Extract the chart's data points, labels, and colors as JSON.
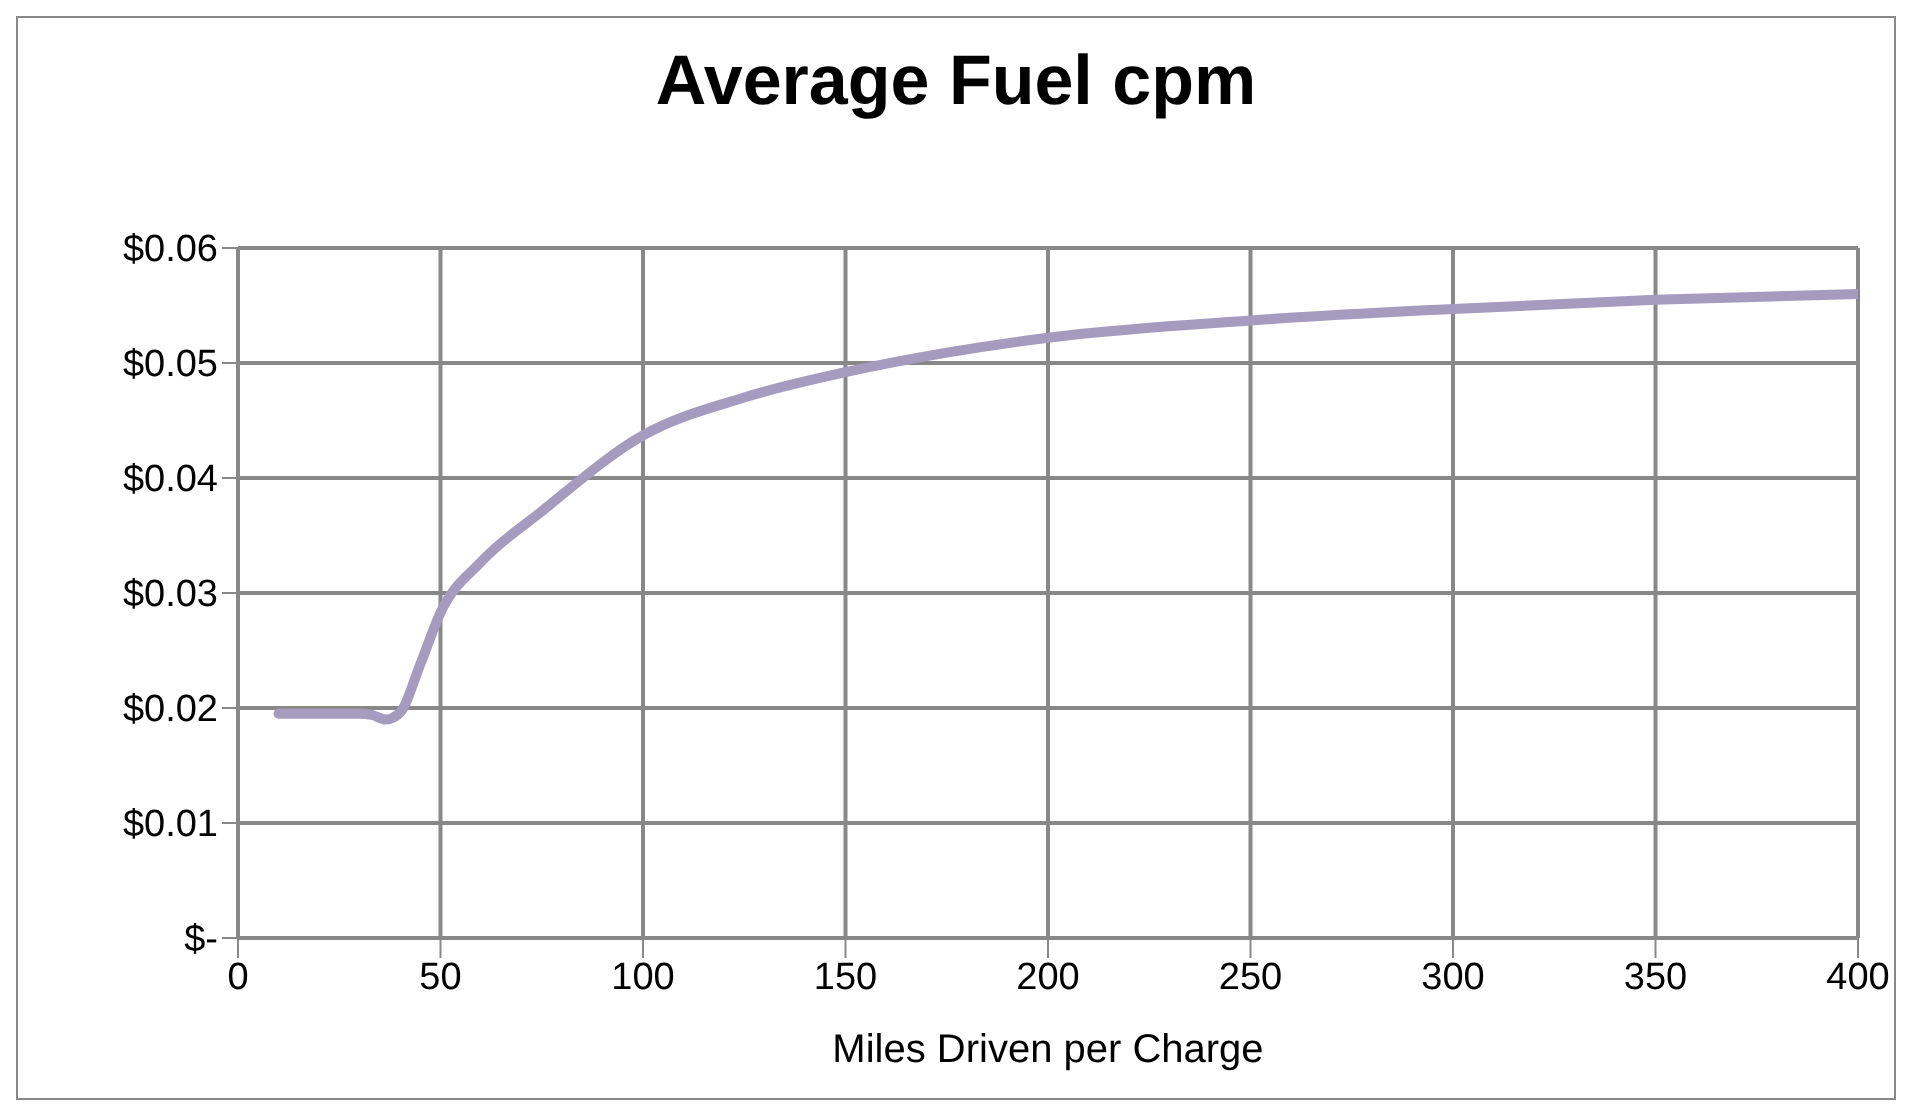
{
  "chart_data": {
    "type": "line",
    "title": "Average Fuel cpm",
    "xlabel": "Miles Driven per Charge",
    "x": [
      10,
      20,
      30,
      33,
      36.5,
      40,
      45,
      50,
      60,
      75,
      100,
      125,
      150,
      175,
      200,
      250,
      300,
      350,
      400
    ],
    "series": [
      {
        "color": "#a59bbf",
        "values": [
          0.0195,
          0.0195,
          0.0195,
          0.0194,
          0.019,
          0.0196,
          0.0238,
          0.0283,
          0.0327,
          0.0371,
          0.0437,
          0.047,
          0.0492,
          0.0509,
          0.0522,
          0.0537,
          0.0547,
          0.0555,
          0.056
        ]
      }
    ],
    "xlim": [
      0,
      400
    ],
    "xticks": [
      0,
      50,
      100,
      150,
      200,
      250,
      300,
      350,
      400
    ],
    "ylim": [
      0,
      0.06
    ],
    "yticks": [
      {
        "value": 0,
        "label": "$-"
      },
      {
        "value": 0.01,
        "label": "$0.01"
      },
      {
        "value": 0.02,
        "label": "$0.02"
      },
      {
        "value": 0.03,
        "label": "$0.03"
      },
      {
        "value": 0.04,
        "label": "$0.04"
      },
      {
        "value": 0.05,
        "label": "$0.05"
      },
      {
        "value": 0.06,
        "label": "$0.06"
      }
    ],
    "grid": true,
    "legend": false,
    "marker": "none",
    "line_style": "solid"
  }
}
